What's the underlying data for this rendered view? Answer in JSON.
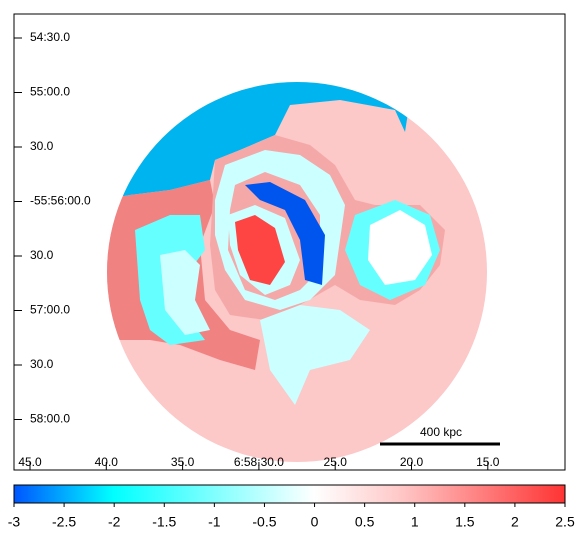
{
  "image": {
    "y_tick_labels": [
      "54:30.0",
      "55:00.0",
      "30.0",
      "-55:56:00.0",
      "30.0",
      "57:00.0",
      "30.0",
      "58:00.0"
    ],
    "x_tick_labels": [
      "45.0",
      "40.0",
      "35.0",
      "6:58:30.0",
      "25.0",
      "20.0",
      "15.0"
    ],
    "scale_bar_label": "400 kpc"
  },
  "colorbar": {
    "lim": [
      -3,
      2.5
    ],
    "ticks": [
      -3,
      -2.5,
      -2,
      -1.5,
      -1,
      -0.5,
      0,
      0.5,
      1,
      1.5,
      2,
      2.5
    ]
  }
}
